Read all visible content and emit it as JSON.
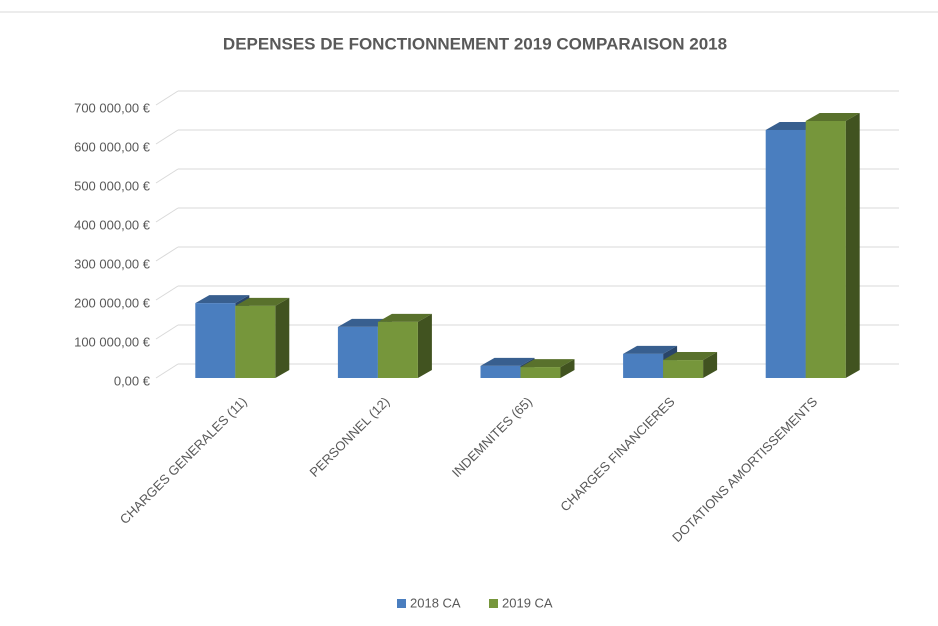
{
  "chart_data": {
    "type": "bar3d",
    "title": "DEPENSES DE FONCTIONNEMENT 2019 COMPARAISON 2018",
    "categories": [
      "CHARGES GENERALES (11)",
      "PERSONNEL (12)",
      "INDEMNITES (65)",
      "CHARGES FINANCIERES",
      "DOTATIONS AMORTISSEMENTS"
    ],
    "series": [
      {
        "name": "2018 CA",
        "color": "#4a7ebf",
        "values": [
          192000,
          131000,
          31000,
          62000,
          636000
        ]
      },
      {
        "name": "2019 CA",
        "color": "#76963b",
        "values": [
          185000,
          144000,
          28000,
          46000,
          659000
        ]
      }
    ],
    "ylim": [
      0,
      700000
    ],
    "yticks": [
      {
        "value": 0,
        "label": "0,00 €"
      },
      {
        "value": 100000,
        "label": "100 000,00 €"
      },
      {
        "value": 200000,
        "label": "200 000,00 €"
      },
      {
        "value": 300000,
        "label": "300 000,00 €"
      },
      {
        "value": 400000,
        "label": "400 000,00 €"
      },
      {
        "value": 500000,
        "label": "500 000,00 €"
      },
      {
        "value": 600000,
        "label": "600 000,00 €"
      },
      {
        "value": 700000,
        "label": "700 000,00 €"
      }
    ],
    "grid": true,
    "legend": "bottom"
  }
}
